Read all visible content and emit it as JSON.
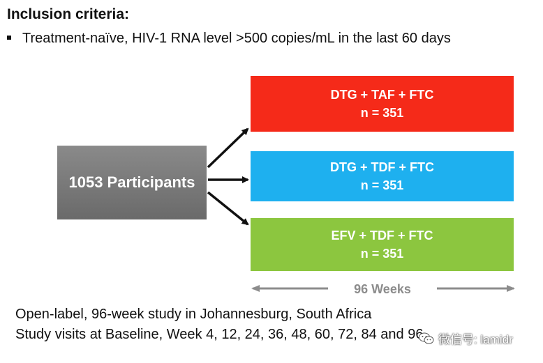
{
  "header": {
    "title": "Inclusion criteria:",
    "criterion": "Treatment-naïve, HIV-1 RNA level >500 copies/mL in the last 60 days"
  },
  "participants": {
    "label": "1053 Participants"
  },
  "arms": [
    {
      "regimen": "DTG + TAF + FTC",
      "n": "n = 351",
      "color": "#f52a19"
    },
    {
      "regimen": "DTG + TDF + FTC",
      "n": "n = 351",
      "color": "#1eb0ef"
    },
    {
      "regimen": "EFV + TDF + FTC",
      "n": "n = 351",
      "color": "#8cc63f"
    }
  ],
  "duration": {
    "label": "96 Weeks"
  },
  "footer": {
    "line1": "Open-label, 96-week study in Johannesburg, South Africa",
    "line2": "Study visits at Baseline, Week 4, 12, 24, 36, 48, 60, 72, 84 and 96"
  },
  "watermark": {
    "text": "微信号: lamidr",
    "icon": "wechat-icon"
  }
}
